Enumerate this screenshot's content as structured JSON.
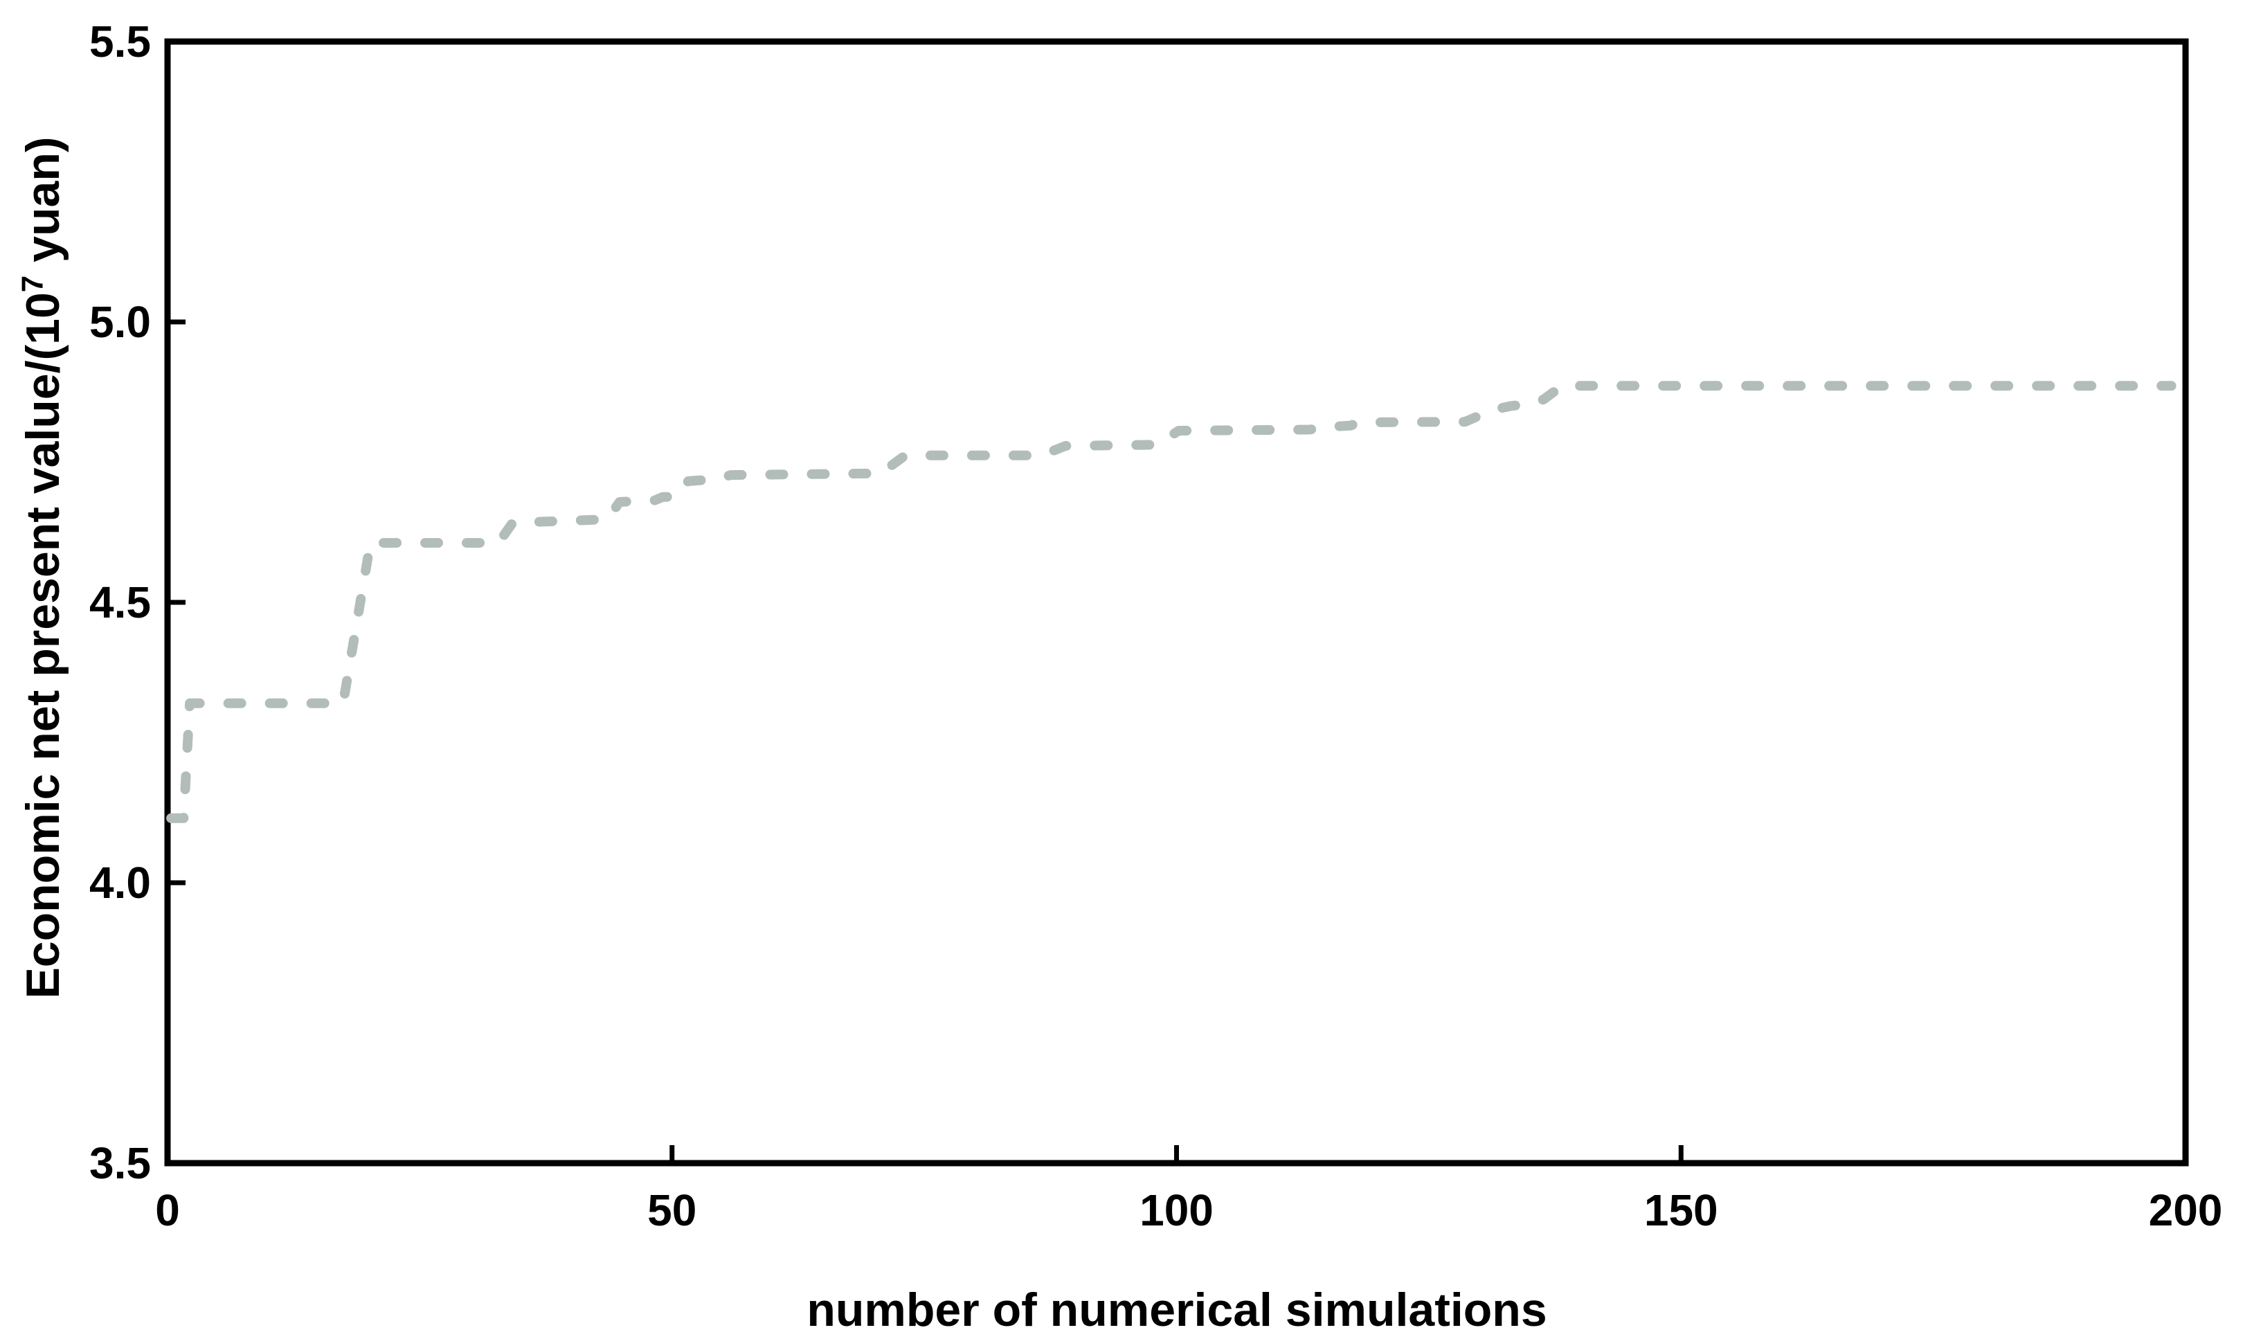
{
  "chart_data": {
    "type": "line",
    "title": "",
    "xlabel": "number of numerical simulations",
    "ylabel": "Economic net present value/(10⁷ yuan)",
    "ylabel_parts": {
      "prefix": "Economic net present value/(10",
      "superscript": "7",
      "suffix": " yuan)"
    },
    "xlim": [
      0,
      200
    ],
    "ylim": [
      3.5,
      5.5
    ],
    "x_ticks": [
      0,
      50,
      100,
      150,
      200
    ],
    "x_tick_labels": [
      "0",
      "50",
      "100",
      "150",
      "200"
    ],
    "y_ticks": [
      5.5,
      5.0,
      4.5,
      4.0,
      3.5
    ],
    "y_tick_labels": [
      "5.5",
      "5.0",
      "4.5",
      "4.0",
      "3.5"
    ],
    "grid": false,
    "legend": null,
    "line_style": "dashed",
    "series": [
      {
        "color": "#b2bdb9",
        "points": [
          [
            0.35,
            4.115
          ],
          [
            1.6,
            4.115
          ],
          [
            2.2,
            4.32
          ],
          [
            17.4,
            4.32
          ],
          [
            20.1,
            4.606
          ],
          [
            32.8,
            4.606
          ],
          [
            34.2,
            4.642
          ],
          [
            43.6,
            4.648
          ],
          [
            44.8,
            4.679
          ],
          [
            48.3,
            4.682
          ],
          [
            49.1,
            4.688
          ],
          [
            50.4,
            4.688
          ],
          [
            51.6,
            4.716
          ],
          [
            54.6,
            4.72
          ],
          [
            55.8,
            4.727
          ],
          [
            70.7,
            4.73
          ],
          [
            73.1,
            4.762
          ],
          [
            86.6,
            4.762
          ],
          [
            89.0,
            4.779
          ],
          [
            98.1,
            4.781
          ],
          [
            100.2,
            4.806
          ],
          [
            113.2,
            4.808
          ],
          [
            115.0,
            4.813
          ],
          [
            117.2,
            4.815
          ],
          [
            118.2,
            4.821
          ],
          [
            128.6,
            4.822
          ],
          [
            131.3,
            4.843
          ],
          [
            133.1,
            4.85
          ],
          [
            135.4,
            4.855
          ],
          [
            136.4,
            4.862
          ],
          [
            138.2,
            4.886
          ],
          [
            198.6,
            4.886
          ]
        ]
      }
    ]
  },
  "colors": {
    "background": "#ffffff",
    "axis": "#000000",
    "text": "#000000",
    "series_line": "#b2bdb9"
  }
}
